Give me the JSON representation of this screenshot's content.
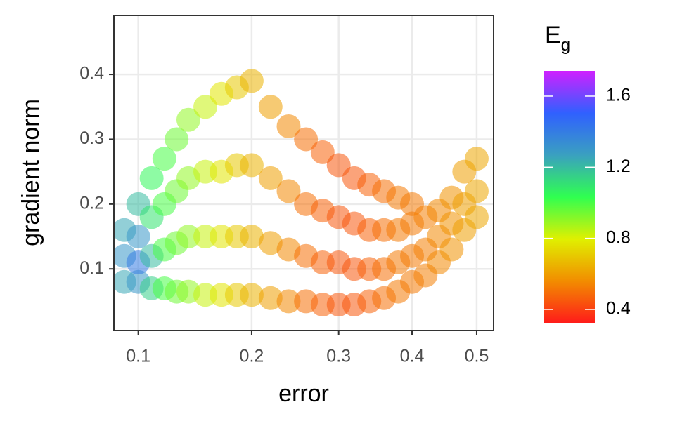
{
  "chart_data": {
    "type": "scatter",
    "x_label": "error",
    "y_label": "gradient norm",
    "colorbar_title": "E",
    "colorbar_title_sub": "g",
    "x_scale": "sqrt",
    "grid": true,
    "xlim": [
      0.083,
      0.528
    ],
    "xticks": [
      0.1,
      0.2,
      0.3,
      0.4,
      0.5
    ],
    "ylim": [
      0.005,
      0.491
    ],
    "yticks": [
      0.1,
      0.2,
      0.3,
      0.4
    ],
    "clim": [
      0.321,
      1.742
    ],
    "cticks": [
      0.4,
      0.8,
      1.2,
      1.6
    ],
    "colorscale": [
      "#ff1a1a",
      "#f28c00",
      "#e0f000",
      "#30ff50",
      "#3aa0c0",
      "#3060ff",
      "#d020ff"
    ],
    "x": [
      0.09,
      0.09,
      0.09,
      0.1,
      0.1,
      0.1,
      0.1,
      0.11,
      0.11,
      0.11,
      0.11,
      0.12,
      0.12,
      0.12,
      0.12,
      0.13,
      0.13,
      0.13,
      0.13,
      0.14,
      0.14,
      0.14,
      0.14,
      0.155,
      0.155,
      0.155,
      0.155,
      0.17,
      0.17,
      0.17,
      0.17,
      0.185,
      0.185,
      0.185,
      0.185,
      0.2,
      0.2,
      0.2,
      0.2,
      0.22,
      0.22,
      0.22,
      0.22,
      0.24,
      0.24,
      0.24,
      0.24,
      0.26,
      0.26,
      0.26,
      0.26,
      0.28,
      0.28,
      0.28,
      0.28,
      0.3,
      0.3,
      0.3,
      0.3,
      0.32,
      0.32,
      0.32,
      0.32,
      0.34,
      0.34,
      0.34,
      0.34,
      0.36,
      0.36,
      0.36,
      0.36,
      0.38,
      0.38,
      0.38,
      0.38,
      0.4,
      0.4,
      0.4,
      0.4,
      0.42,
      0.42,
      0.42,
      0.44,
      0.44,
      0.44,
      0.46,
      0.46,
      0.46,
      0.48,
      0.48,
      0.48,
      0.5,
      0.5,
      0.5
    ],
    "values": [
      0.08,
      0.12,
      0.16,
      0.08,
      0.11,
      0.15,
      0.2,
      0.07,
      0.12,
      0.18,
      0.24,
      0.07,
      0.13,
      0.2,
      0.27,
      0.065,
      0.14,
      0.22,
      0.3,
      0.065,
      0.15,
      0.24,
      0.33,
      0.06,
      0.15,
      0.25,
      0.35,
      0.06,
      0.15,
      0.25,
      0.37,
      0.06,
      0.15,
      0.26,
      0.38,
      0.06,
      0.15,
      0.26,
      0.39,
      0.055,
      0.14,
      0.24,
      0.35,
      0.05,
      0.13,
      0.22,
      0.32,
      0.05,
      0.12,
      0.2,
      0.3,
      0.045,
      0.11,
      0.19,
      0.28,
      0.045,
      0.11,
      0.18,
      0.26,
      0.045,
      0.1,
      0.17,
      0.24,
      0.05,
      0.1,
      0.16,
      0.23,
      0.055,
      0.1,
      0.16,
      0.22,
      0.065,
      0.11,
      0.16,
      0.21,
      0.08,
      0.12,
      0.17,
      0.2,
      0.09,
      0.13,
      0.18,
      0.11,
      0.15,
      0.19,
      0.13,
      0.17,
      0.21,
      0.16,
      0.2,
      0.25,
      0.18,
      0.22,
      0.27
    ],
    "color_values": [
      1.25,
      1.3,
      1.25,
      1.3,
      1.4,
      1.3,
      1.2,
      1.15,
      1.2,
      1.1,
      1.05,
      1.0,
      1.0,
      1.0,
      1.0,
      0.95,
      0.95,
      0.95,
      0.95,
      0.9,
      0.9,
      0.9,
      0.9,
      0.83,
      0.83,
      0.83,
      0.83,
      0.77,
      0.77,
      0.77,
      0.77,
      0.7,
      0.7,
      0.7,
      0.7,
      0.65,
      0.65,
      0.65,
      0.65,
      0.6,
      0.6,
      0.6,
      0.6,
      0.55,
      0.55,
      0.55,
      0.55,
      0.5,
      0.5,
      0.5,
      0.5,
      0.47,
      0.47,
      0.47,
      0.47,
      0.45,
      0.45,
      0.45,
      0.45,
      0.45,
      0.45,
      0.45,
      0.45,
      0.47,
      0.47,
      0.47,
      0.47,
      0.5,
      0.5,
      0.5,
      0.5,
      0.52,
      0.52,
      0.52,
      0.52,
      0.52,
      0.52,
      0.52,
      0.52,
      0.53,
      0.53,
      0.53,
      0.55,
      0.55,
      0.55,
      0.57,
      0.57,
      0.57,
      0.6,
      0.6,
      0.6,
      0.62,
      0.62,
      0.62
    ]
  }
}
